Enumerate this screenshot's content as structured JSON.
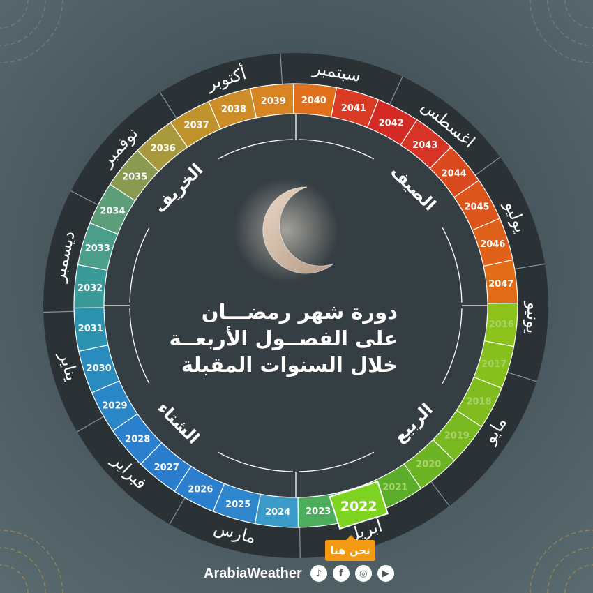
{
  "title_lines": [
    "دورة شهر رمضـــان",
    "على الفصــول الأربعــة",
    "خلال السنوات المقبلة"
  ],
  "seasons": [
    {
      "label": "الصيف",
      "angle": 45
    },
    {
      "label": "الربيع",
      "angle": 135
    },
    {
      "label": "الشتاء",
      "angle": 225
    },
    {
      "label": "الخريف",
      "angle": 315
    }
  ],
  "months": [
    {
      "label": "سبتمبر",
      "angle": 10
    },
    {
      "label": "اغسطس",
      "angle": 40
    },
    {
      "label": "يوليو",
      "angle": 68
    },
    {
      "label": "يونيو",
      "angle": 93
    },
    {
      "label": "مايو",
      "angle": 122
    },
    {
      "label": "أبريل",
      "angle": 163
    },
    {
      "label": "مارس",
      "angle": 195
    },
    {
      "label": "فبراير",
      "angle": 225
    },
    {
      "label": "يناير",
      "angle": 255
    },
    {
      "label": "ديسمبر",
      "angle": 282
    },
    {
      "label": "نوفمبر",
      "angle": 312
    },
    {
      "label": "أكتوبر",
      "angle": 343
    }
  ],
  "current_year": "2022",
  "years": [
    {
      "year": "2016",
      "color": "#8cc21a",
      "past": true
    },
    {
      "year": "2017",
      "color": "#86c01c",
      "past": true
    },
    {
      "year": "2018",
      "color": "#80bc1e",
      "past": true
    },
    {
      "year": "2019",
      "color": "#78b820",
      "past": true
    },
    {
      "year": "2020",
      "color": "#6cb424",
      "past": true
    },
    {
      "year": "2021",
      "color": "#5cae2a",
      "past": true
    },
    {
      "year": "2022",
      "color": "#7ed321",
      "past": false
    },
    {
      "year": "2023",
      "color": "#4cae5c",
      "past": false
    },
    {
      "year": "2024",
      "color": "#3a9bc8",
      "past": false
    },
    {
      "year": "2025",
      "color": "#2f86cc",
      "past": false
    },
    {
      "year": "2026",
      "color": "#2b7fcc",
      "past": false
    },
    {
      "year": "2027",
      "color": "#2a7ccc",
      "past": false
    },
    {
      "year": "2028",
      "color": "#2a80cc",
      "past": false
    },
    {
      "year": "2029",
      "color": "#2a86c6",
      "past": false
    },
    {
      "year": "2030",
      "color": "#2a8cbe",
      "past": false
    },
    {
      "year": "2031",
      "color": "#2b93b0",
      "past": false
    },
    {
      "year": "2032",
      "color": "#3a9a98",
      "past": false
    },
    {
      "year": "2033",
      "color": "#4a9e8a",
      "past": false
    },
    {
      "year": "2034",
      "color": "#5c9e7a",
      "past": false
    },
    {
      "year": "2035",
      "color": "#8a9a50",
      "past": false
    },
    {
      "year": "2036",
      "color": "#a89a3c",
      "past": false
    },
    {
      "year": "2037",
      "color": "#c0922c",
      "past": false
    },
    {
      "year": "2038",
      "color": "#cc8c28",
      "past": false
    },
    {
      "year": "2039",
      "color": "#d88422",
      "past": false
    },
    {
      "year": "2040",
      "color": "#e0701c",
      "past": false
    },
    {
      "year": "2041",
      "color": "#d83a24",
      "past": false
    },
    {
      "year": "2042",
      "color": "#d42a26",
      "past": false
    },
    {
      "year": "2043",
      "color": "#d63424",
      "past": false
    },
    {
      "year": "2044",
      "color": "#da4a1e",
      "past": false
    },
    {
      "year": "2045",
      "color": "#dc561c",
      "past": false
    },
    {
      "year": "2046",
      "color": "#e0621a",
      "past": false
    },
    {
      "year": "2047",
      "color": "#e06c18",
      "past": false
    }
  ],
  "here_badge": "نحن هنا",
  "footer": {
    "brand": "ArabiaWeather",
    "social_icons": [
      "tiktok-icon",
      "facebook-icon",
      "instagram-icon",
      "youtube-icon"
    ]
  }
}
